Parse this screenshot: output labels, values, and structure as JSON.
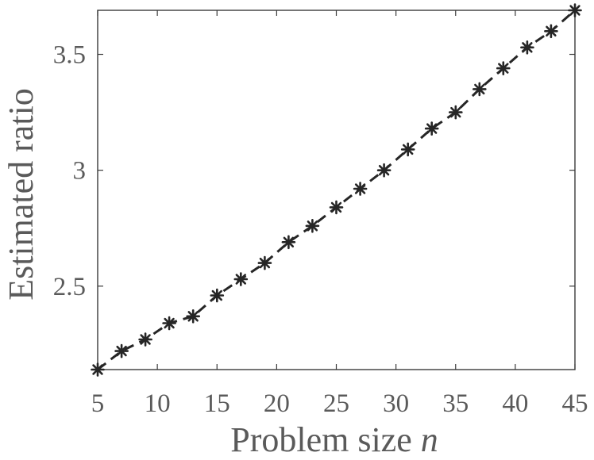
{
  "chart_data": {
    "type": "line",
    "title": "",
    "xlabel": "Problem size",
    "xlabel_var": "n",
    "ylabel": "Estimated ratio",
    "xlim": [
      5,
      45
    ],
    "ylim": [
      2.14,
      3.69
    ],
    "xticks": [
      "5",
      "10",
      "15",
      "20",
      "25",
      "30",
      "35",
      "40",
      "45"
    ],
    "yticks": [
      "2.5",
      "3",
      "3.5"
    ],
    "grid": false,
    "legend": "none",
    "line_style": "dashed",
    "marker": "asterisk",
    "color": "#262626",
    "series": [
      {
        "x": [
          5,
          7,
          9,
          11,
          13,
          15,
          17,
          19,
          21,
          23,
          25,
          27,
          29,
          31,
          33,
          35,
          37,
          39,
          41,
          43,
          45
        ],
        "values": [
          2.14,
          2.22,
          2.27,
          2.34,
          2.37,
          2.46,
          2.53,
          2.6,
          2.69,
          2.76,
          2.84,
          2.92,
          3.0,
          3.09,
          3.18,
          3.25,
          3.35,
          3.44,
          3.53,
          3.6,
          3.69
        ]
      }
    ]
  }
}
